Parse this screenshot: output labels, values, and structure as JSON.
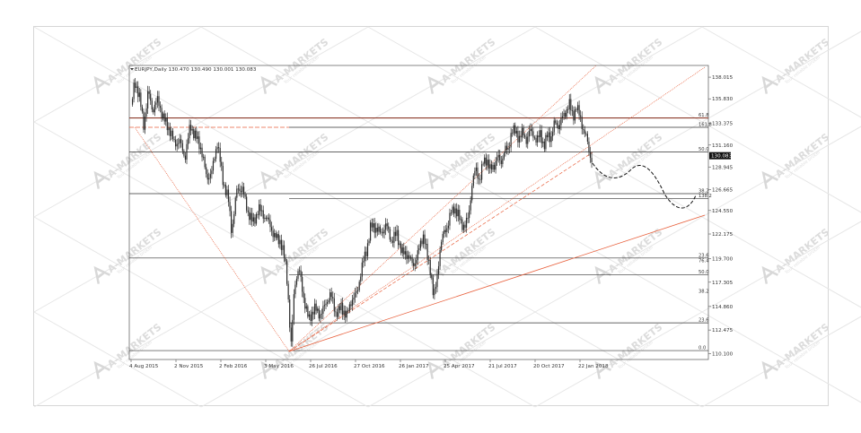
{
  "chart_data": {
    "type": "candlestick",
    "title": "EURJPY,Daily  130.470 130.490 130.001 130.083",
    "symbol": "EURJPY",
    "timeframe": "Daily",
    "ohlc_header": {
      "open": 130.47,
      "high": 130.49,
      "low": 130.001,
      "close": 130.083
    },
    "current_price": 130.083,
    "current_price_label": "130.083",
    "y_ticks": [
      {
        "value": 138.015,
        "label": "138.015"
      },
      {
        "value": 135.83,
        "label": "135.830"
      },
      {
        "value": 133.375,
        "label": "133.375"
      },
      {
        "value": 131.16,
        "label": "131.160"
      },
      {
        "value": 128.945,
        "label": "128.945"
      },
      {
        "value": 126.665,
        "label": "126.665"
      },
      {
        "value": 124.55,
        "label": "124.550"
      },
      {
        "value": 122.175,
        "label": "122.175"
      },
      {
        "value": 119.7,
        "label": "119.700"
      },
      {
        "value": 117.305,
        "label": "117.305"
      },
      {
        "value": 114.86,
        "label": "114.860"
      },
      {
        "value": 112.475,
        "label": "112.475"
      },
      {
        "value": 110.1,
        "label": "110.100"
      }
    ],
    "x_ticks": [
      "4 Aug 2015",
      "2 Nov 2015",
      "2 Feb 2016",
      "3 May 2016",
      "26 Jul 2016",
      "27 Oct 2016",
      "26 Jan 2017",
      "25 Apr 2017",
      "21 Jul 2017",
      "20 Oct 2017",
      "22 Jan 2018"
    ],
    "ylim": [
      109.5,
      139.2
    ],
    "horizontal_levels": [
      {
        "value": 133.9,
        "color": "#8b3a2a",
        "style": "solid",
        "span": "full"
      },
      {
        "value": 132.95,
        "color": "#e8603c",
        "style": "dashed",
        "span": "left-part"
      },
      {
        "value": 132.95,
        "color": "#333333",
        "style": "solid",
        "span": "right-part"
      },
      {
        "value": 130.45,
        "color": "#333333",
        "style": "solid",
        "span": "full"
      },
      {
        "value": 126.25,
        "color": "#333333",
        "style": "solid",
        "span": "full"
      },
      {
        "value": 125.75,
        "color": "#333333",
        "style": "solid",
        "span": "from-low"
      },
      {
        "value": 119.75,
        "color": "#333333",
        "style": "solid",
        "span": "full"
      },
      {
        "value": 118.05,
        "color": "#333333",
        "style": "solid",
        "span": "from-low"
      },
      {
        "value": 113.2,
        "color": "#333333",
        "style": "solid",
        "span": "from-low"
      },
      {
        "value": 110.4,
        "color": "#333333",
        "style": "solid",
        "span": "full"
      }
    ],
    "fib_labels": [
      {
        "value": 133.9,
        "label": "61.8"
      },
      {
        "value": 132.95,
        "label": "161.8"
      },
      {
        "value": 130.45,
        "label": "50.0"
      },
      {
        "value": 126.25,
        "label": "38.2"
      },
      {
        "value": 125.75,
        "label": "138.2"
      },
      {
        "value": 119.75,
        "label": "23.6"
      },
      {
        "value": 119.2,
        "label": "76.4"
      },
      {
        "value": 118.05,
        "label": "50.0"
      },
      {
        "value": 116.1,
        "label": "38.2"
      },
      {
        "value": 113.2,
        "label": "23.6"
      },
      {
        "value": 110.4,
        "label": "0.0"
      }
    ],
    "legend": "none",
    "grid": false,
    "watermark": "A-MARKETS",
    "watermark_sub": "Your reliable broker"
  }
}
